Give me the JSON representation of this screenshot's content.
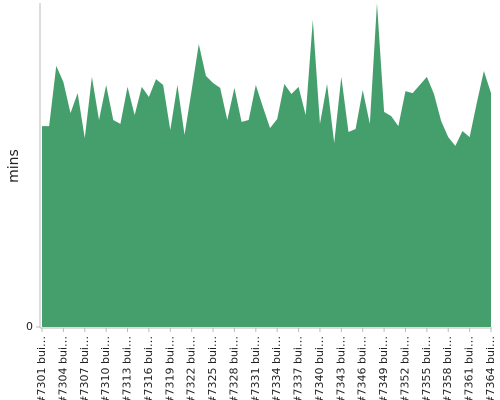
{
  "chart_data": {
    "type": "area",
    "y_label": "mins",
    "color": "#449f6d",
    "ylim": [
      0,
      100
    ],
    "yticks": [
      0
    ],
    "categories": [
      "#7301 bui…",
      null,
      null,
      "#7304 bui…",
      null,
      null,
      "#7307 bui…",
      null,
      null,
      "#7310 bui…",
      null,
      null,
      "#7313 bui…",
      null,
      null,
      "#7316 bui…",
      null,
      null,
      "#7319 bui…",
      null,
      null,
      "#7322 bui…",
      null,
      null,
      "#7325 bui…",
      null,
      null,
      "#7328 bui…",
      null,
      null,
      "#7331 bui…",
      null,
      null,
      "#7334 bui…",
      null,
      null,
      "#7337 bui…",
      null,
      null,
      "#7340 bui…",
      null,
      null,
      "#7343 bui…",
      null,
      null,
      "#7346 bui…",
      null,
      null,
      "#7349 bui…",
      null,
      null,
      "#7352 bui…",
      null,
      null,
      "#7355 bui…",
      null,
      null,
      "#7358 bui…",
      null,
      null,
      "#7361 bui…",
      null,
      null,
      "#7364 bui…"
    ],
    "values": [
      62.0,
      62.0,
      80.6,
      75.6,
      66.0,
      72.2,
      58.3,
      77.2,
      63.9,
      74.7,
      63.9,
      62.7,
      74.1,
      65.4,
      74.1,
      71.0,
      76.5,
      74.7,
      60.8,
      74.7,
      59.3,
      73.1,
      87.3,
      77.5,
      75.3,
      73.8,
      63.9,
      73.8,
      63.3,
      63.9,
      74.7,
      67.9,
      61.4,
      64.2,
      75.0,
      71.9,
      74.1,
      65.4,
      94.8,
      62.7,
      75.0,
      56.8,
      77.2,
      60.2,
      61.1,
      73.1,
      62.7,
      100,
      66.4,
      65.1,
      62.0,
      72.8,
      72.2,
      74.7,
      77.2,
      71.9,
      63.6,
      58.6,
      55.9,
      60.5,
      58.6,
      69.1,
      79.0,
      72.2
    ]
  }
}
